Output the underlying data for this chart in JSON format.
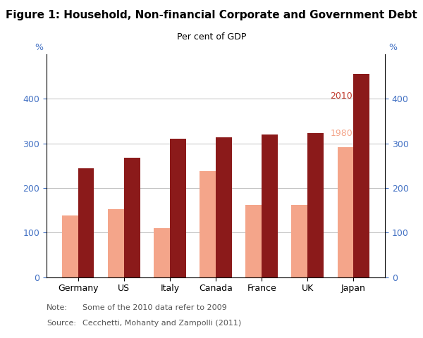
{
  "title": "Figure 1: Household, Non-financial Corporate and Government Debt",
  "subtitle": "Per cent of GDP",
  "categories": [
    "Germany",
    "US",
    "Italy",
    "Canada",
    "France",
    "UK",
    "Japan"
  ],
  "values_1980": [
    138,
    152,
    110,
    238,
    162,
    162,
    292
  ],
  "values_2010": [
    244,
    268,
    311,
    314,
    320,
    323,
    456
  ],
  "color_1980": "#F4A58A",
  "color_2010": "#8B1A1A",
  "ylim": [
    0,
    500
  ],
  "yticks": [
    0,
    100,
    200,
    300,
    400
  ],
  "ylabel_left": "%",
  "ylabel_right": "%",
  "note_label": "Note:",
  "note_text": "Some of the 2010 data refer to 2009",
  "source_label": "Source:",
  "source_text": "Cecchetti, Mohanty and Zampolli (2011)",
  "label_1980": "1980",
  "label_2010": "2010",
  "label_color_1980": "#F4A58A",
  "label_color_2010": "#C0392B",
  "bar_width": 0.35,
  "fig_width": 6.0,
  "fig_height": 4.8,
  "dpi": 100,
  "tick_color": "#4472C4",
  "grid_color": "#C0C0C0",
  "title_fontsize": 11,
  "subtitle_fontsize": 9,
  "axis_fontsize": 9,
  "note_fontsize": 8
}
